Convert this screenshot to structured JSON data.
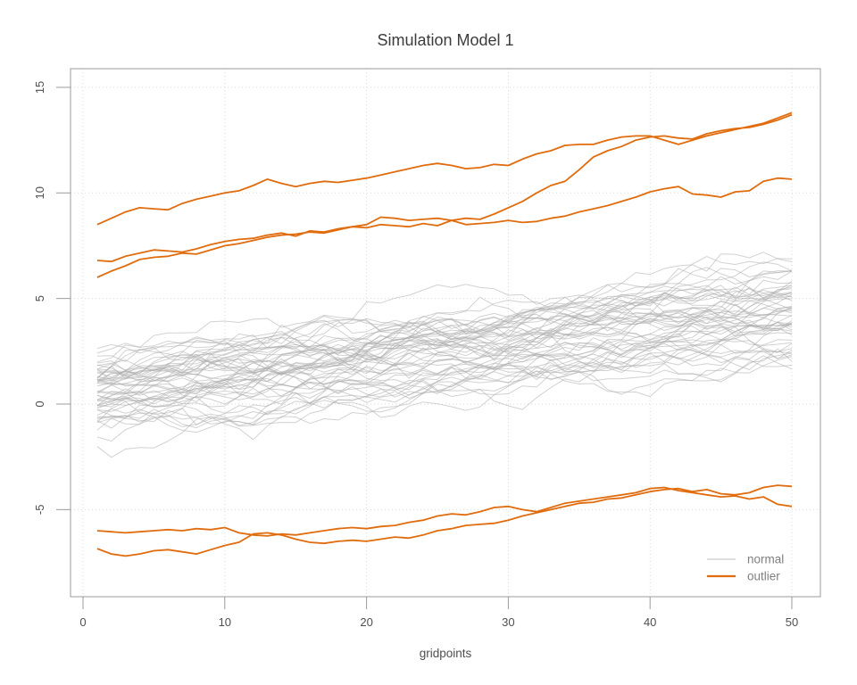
{
  "figure": {
    "title": "Simulation Model 1",
    "xlabel": "gridpoints"
  },
  "legend": {
    "position": "bottom-right",
    "items": [
      {
        "label": "normal",
        "color": "#c9c9c9",
        "line_width": 1
      },
      {
        "label": "outlier",
        "color": "#e06c0e",
        "line_width": 2
      }
    ]
  },
  "colors": {
    "background": "#ffffff",
    "normal_line": "#adadad",
    "outlier_line": "#e06c0e",
    "grid": "#d9d9d9",
    "box_border": "#9b9b9b",
    "tick_mark": "#9b9b9b",
    "tick_label": "#4f4f4f",
    "title": "#3c3c3c",
    "axis_label": "#4f4f4f",
    "legend_text": "#7f7f7f"
  },
  "chart_data": {
    "type": "line",
    "title": "Simulation Model 1",
    "xlabel": "gridpoints",
    "ylabel": "",
    "grid": true,
    "grid_style": "dotted",
    "legend_position": "bottom-right",
    "x_ticks": [
      0,
      10,
      20,
      30,
      40,
      50
    ],
    "y_ticks": [
      -5,
      0,
      5,
      10,
      15
    ],
    "xlim": [
      -0.96,
      51.96
    ],
    "ylim": [
      -9.0,
      15.9
    ],
    "x": [
      1,
      2,
      3,
      4,
      5,
      6,
      7,
      8,
      9,
      10,
      11,
      12,
      13,
      14,
      15,
      16,
      17,
      18,
      19,
      20,
      21,
      22,
      23,
      24,
      25,
      26,
      27,
      28,
      29,
      30,
      31,
      32,
      33,
      34,
      35,
      36,
      37,
      38,
      39,
      40,
      41,
      42,
      43,
      44,
      45,
      46,
      47,
      48,
      49,
      50
    ],
    "series": [
      {
        "name": "outlier-upper-1",
        "group": "outlier",
        "values": [
          8.5,
          8.8,
          9.1,
          9.3,
          9.25,
          9.2,
          9.5,
          9.7,
          9.85,
          10.0,
          10.1,
          10.35,
          10.65,
          10.45,
          10.3,
          10.45,
          10.55,
          10.5,
          10.6,
          10.7,
          10.85,
          11.0,
          11.15,
          11.3,
          11.4,
          11.3,
          11.15,
          11.2,
          11.35,
          11.3,
          11.6,
          11.85,
          12.0,
          12.25,
          12.3,
          12.3,
          12.5,
          12.65,
          12.7,
          12.7,
          12.5,
          12.3,
          12.5,
          12.7,
          12.85,
          13.0,
          13.15,
          13.3,
          13.55,
          13.8
        ]
      },
      {
        "name": "outlier-upper-2",
        "group": "outlier",
        "values": [
          6.8,
          6.75,
          7.0,
          7.15,
          7.3,
          7.25,
          7.2,
          7.35,
          7.55,
          7.7,
          7.8,
          7.85,
          8.0,
          8.1,
          7.95,
          8.2,
          8.15,
          8.3,
          8.4,
          8.35,
          8.5,
          8.45,
          8.4,
          8.55,
          8.45,
          8.7,
          8.8,
          8.75,
          9.0,
          9.3,
          9.6,
          10.0,
          10.35,
          10.55,
          11.1,
          11.7,
          12.0,
          12.2,
          12.5,
          12.65,
          12.7,
          12.6,
          12.55,
          12.8,
          12.95,
          13.05,
          13.1,
          13.25,
          13.45,
          13.7
        ]
      },
      {
        "name": "outlier-upper-3",
        "group": "outlier",
        "values": [
          6.0,
          6.3,
          6.55,
          6.85,
          6.95,
          7.0,
          7.15,
          7.1,
          7.3,
          7.5,
          7.6,
          7.75,
          7.9,
          8.0,
          8.05,
          8.15,
          8.1,
          8.25,
          8.4,
          8.5,
          8.85,
          8.8,
          8.7,
          8.75,
          8.8,
          8.7,
          8.5,
          8.55,
          8.6,
          8.7,
          8.6,
          8.65,
          8.8,
          8.9,
          9.1,
          9.25,
          9.4,
          9.6,
          9.8,
          10.05,
          10.2,
          10.3,
          9.95,
          9.9,
          9.8,
          10.05,
          10.1,
          10.55,
          10.7,
          10.65
        ]
      },
      {
        "name": "outlier-lower-1",
        "group": "outlier",
        "values": [
          -6.0,
          -6.05,
          -6.1,
          -6.05,
          -6.0,
          -5.95,
          -6.0,
          -5.9,
          -5.95,
          -5.85,
          -6.1,
          -6.2,
          -6.25,
          -6.15,
          -6.2,
          -6.1,
          -6.0,
          -5.9,
          -5.85,
          -5.9,
          -5.8,
          -5.75,
          -5.6,
          -5.5,
          -5.3,
          -5.2,
          -5.25,
          -5.1,
          -4.9,
          -4.85,
          -5.0,
          -5.1,
          -4.9,
          -4.7,
          -4.6,
          -4.5,
          -4.4,
          -4.3,
          -4.2,
          -4.0,
          -3.95,
          -4.1,
          -4.2,
          -4.3,
          -4.4,
          -4.35,
          -4.5,
          -4.4,
          -4.75,
          -4.85
        ]
      },
      {
        "name": "outlier-lower-2",
        "group": "outlier",
        "values": [
          -6.85,
          -7.1,
          -7.2,
          -7.1,
          -6.95,
          -6.9,
          -7.0,
          -7.1,
          -6.9,
          -6.7,
          -6.55,
          -6.15,
          -6.1,
          -6.2,
          -6.4,
          -6.55,
          -6.6,
          -6.5,
          -6.45,
          -6.5,
          -6.4,
          -6.3,
          -6.35,
          -6.2,
          -6.0,
          -5.9,
          -5.75,
          -5.7,
          -5.65,
          -5.5,
          -5.3,
          -5.15,
          -5.0,
          -4.85,
          -4.7,
          -4.65,
          -4.5,
          -4.45,
          -4.3,
          -4.15,
          -4.05,
          -4.0,
          -4.15,
          -4.05,
          -4.25,
          -4.3,
          -4.2,
          -3.95,
          -3.85,
          -3.9
        ]
      }
    ],
    "normal_series_spec": {
      "comment": "≈55 indistinguishable gray random-walk curves; rendered from this spec with a seeded PRNG",
      "count": 55,
      "seed": 42,
      "start_value_range": [
        -2.25,
        2.6
      ],
      "start_mean": 0.4,
      "end_value_range": [
        2.0,
        7.0
      ],
      "slope_mean": 0.078,
      "slope_sd": 0.016,
      "wiggle_step_sd": 0.27,
      "line_opacity": 0.55
    }
  }
}
